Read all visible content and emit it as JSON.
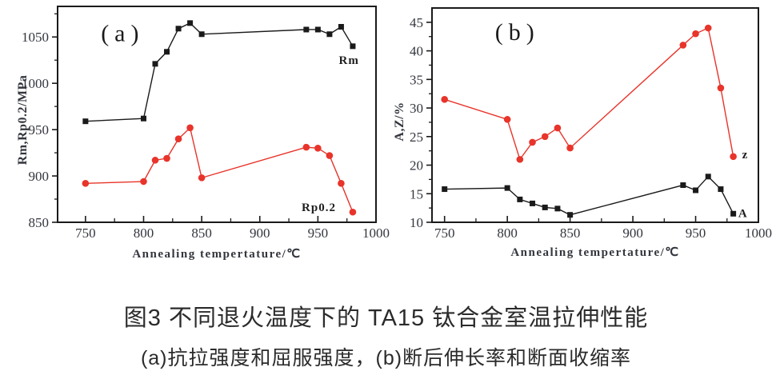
{
  "caption": {
    "line1": "图3  不同退火温度下的 TA15 钛合金室温拉伸性能",
    "line2": "(a)抗拉强度和屈服强度，(b)断后伸长率和断面收缩率"
  },
  "colors": {
    "red": "#e8342a",
    "black": "#1a1a1a",
    "axis": "#1a1a1a",
    "tick_text": "#33363d"
  },
  "chart_data": [
    {
      "id": "a",
      "type": "line",
      "panel_label": "(a)",
      "panel_label_at": [
        782,
        1054
      ],
      "xlabel": "Annealing tempertature/℃",
      "ylabel": "Rm,Rp0.2/MPa",
      "x": [
        750,
        800,
        810,
        820,
        830,
        840,
        850,
        940,
        950,
        960,
        970,
        980
      ],
      "xlim": [
        726,
        1000
      ],
      "ylim": [
        850,
        1083
      ],
      "xticks": [
        750,
        800,
        850,
        900,
        950,
        1000
      ],
      "yticks": [
        850,
        900,
        950,
        1000,
        1050
      ],
      "grid": false,
      "series": [
        {
          "name": "Rm",
          "color": "black",
          "marker": "square",
          "values": [
            959,
            962,
            1021,
            1034,
            1059,
            1065,
            1053,
            1058,
            1058,
            1053,
            1061,
            1040
          ],
          "label": "Rm",
          "label_at": [
            968,
            1021
          ]
        },
        {
          "name": "Rp0.2",
          "color": "red",
          "marker": "circle",
          "values": [
            892,
            894,
            917,
            919,
            940,
            952,
            898,
            931,
            930,
            922,
            892,
            861
          ],
          "label": "Rp0.2",
          "label_at": [
            936,
            862
          ]
        }
      ]
    },
    {
      "id": "b",
      "type": "line",
      "panel_label": "(b)",
      "panel_label_at": [
        808,
        43.3
      ],
      "xlabel": "Annealing tempertature/℃",
      "ylabel": "A,Z/%",
      "x": [
        750,
        800,
        810,
        820,
        830,
        840,
        850,
        940,
        950,
        960,
        970,
        980
      ],
      "xlim": [
        740,
        1000
      ],
      "ylim": [
        10,
        47.5
      ],
      "xticks": [
        750,
        800,
        850,
        900,
        950,
        1000
      ],
      "yticks": [
        10,
        15,
        20,
        25,
        30,
        35,
        40,
        45
      ],
      "grid": false,
      "series": [
        {
          "name": "Z",
          "color": "red",
          "marker": "circle",
          "values": [
            31.5,
            28,
            21,
            24,
            25,
            26.5,
            23,
            41,
            43,
            44,
            33.5,
            21.5
          ],
          "label": "z",
          "label_at": [
            987,
            21.2
          ]
        },
        {
          "name": "A",
          "color": "black",
          "marker": "square",
          "values": [
            15.8,
            16,
            14,
            13.3,
            12.6,
            12.4,
            11.3,
            16.5,
            15.6,
            18,
            15.8,
            11.5
          ],
          "label": "A",
          "label_at": [
            984,
            10.9
          ]
        }
      ]
    }
  ]
}
